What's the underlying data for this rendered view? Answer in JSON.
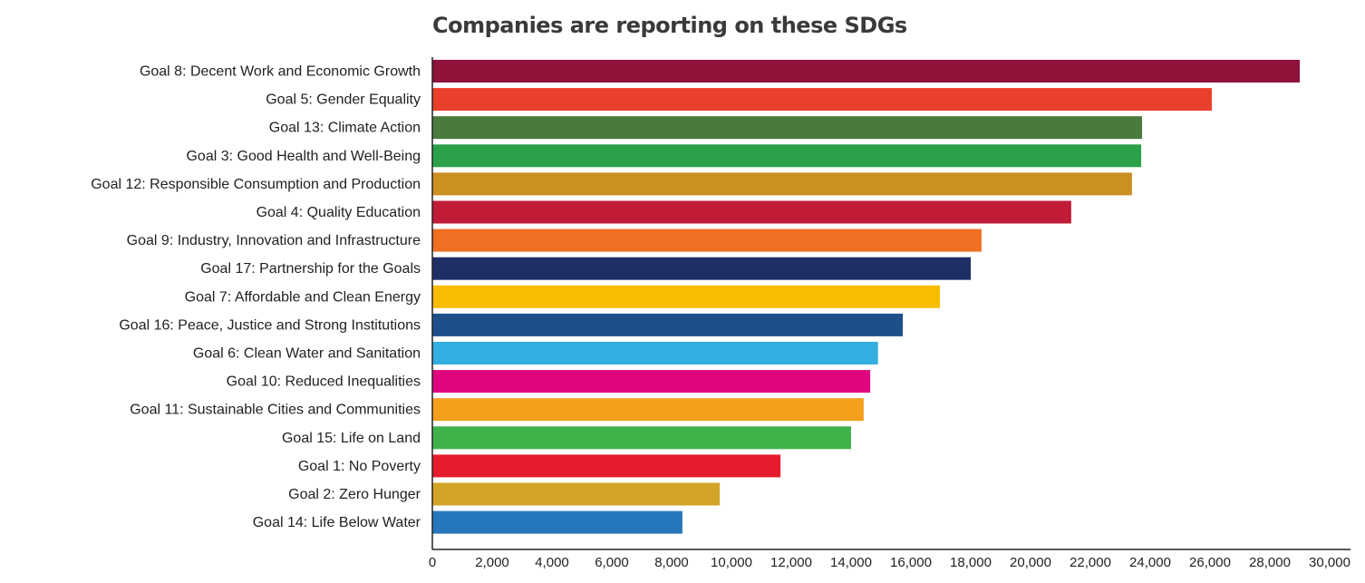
{
  "chart_data": {
    "type": "bar",
    "orientation": "horizontal",
    "title": "Companies are reporting on these SDGs",
    "xlabel": "",
    "ylabel": "",
    "xlim": [
      0,
      30000
    ],
    "grid": false,
    "x_tick_labels": [
      "0",
      "2,000",
      "4,000",
      "6,000",
      "8,000",
      "10,000",
      "12,000",
      "14,000",
      "16,000",
      "18,000",
      "20,000",
      "22,000",
      "24,000",
      "26,000",
      "28,000",
      "30,000"
    ],
    "categories": [
      "Goal 8: Decent Work and Economic Growth",
      "Goal 5: Gender Equality",
      "Goal 13: Climate Action",
      "Goal 3: Good Health and Well-Being",
      "Goal 12: Responsible Consumption and Production",
      "Goal 4: Quality Education",
      "Goal 9: Industry, Innovation and Infrastructure",
      "Goal 17: Partnership for the Goals",
      "Goal 7: Affordable and Clean Energy",
      "Goal 16: Peace, Justice and Strong Institutions",
      "Goal 6: Clean Water and Sanitation",
      "Goal 10: Reduced Inequalities",
      "Goal 11: Sustainable Cities and Communities",
      "Goal 15: Life on Land",
      "Goal 1: No Poverty",
      "Goal 2: Zero Hunger",
      "Goal 14: Life Below Water"
    ],
    "values": [
      29000,
      26060,
      23730,
      23700,
      23390,
      21360,
      18360,
      18000,
      16970,
      15730,
      14900,
      14640,
      14420,
      14000,
      11640,
      9610,
      8360
    ],
    "colors": [
      "#8f1238",
      "#ea3f2a",
      "#4a7a3c",
      "#2ba24a",
      "#cb8f22",
      "#c01b37",
      "#f06f22",
      "#1f2f66",
      "#f8bd00",
      "#1e4f8a",
      "#33aee0",
      "#e0047f",
      "#f5a01d",
      "#3fb24a",
      "#e61c2d",
      "#d3a527",
      "#2676bc"
    ]
  }
}
